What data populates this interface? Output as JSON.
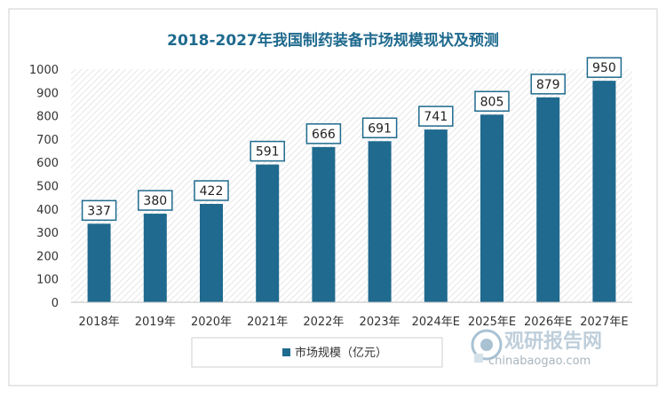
{
  "chart_data": {
    "type": "bar",
    "title": "2018-2027年我国制药装备市场规模现状及预测",
    "categories": [
      "2018年",
      "2019年",
      "2020年",
      "2021年",
      "2022年",
      "2023年",
      "2024年E",
      "2025年E",
      "2026年E",
      "2027年E"
    ],
    "series": [
      {
        "name": "市场规模（亿元）",
        "values": [
          337,
          380,
          422,
          591,
          666,
          691,
          741,
          805,
          879,
          950
        ]
      }
    ],
    "ylim": [
      0,
      1000
    ],
    "yticks": [
      0,
      100,
      200,
      300,
      400,
      500,
      600,
      700,
      800,
      900,
      1000
    ],
    "xlabel": "",
    "ylabel": "",
    "grid": false,
    "legend_position": "bottom",
    "data_labels": true
  },
  "colors": {
    "bar": "#1f6a8e",
    "title": "#1f6a8e",
    "label_border": "#1f6a8e"
  },
  "watermark": {
    "brand": "观研报告网",
    "url": "chinabaogao.com"
  }
}
